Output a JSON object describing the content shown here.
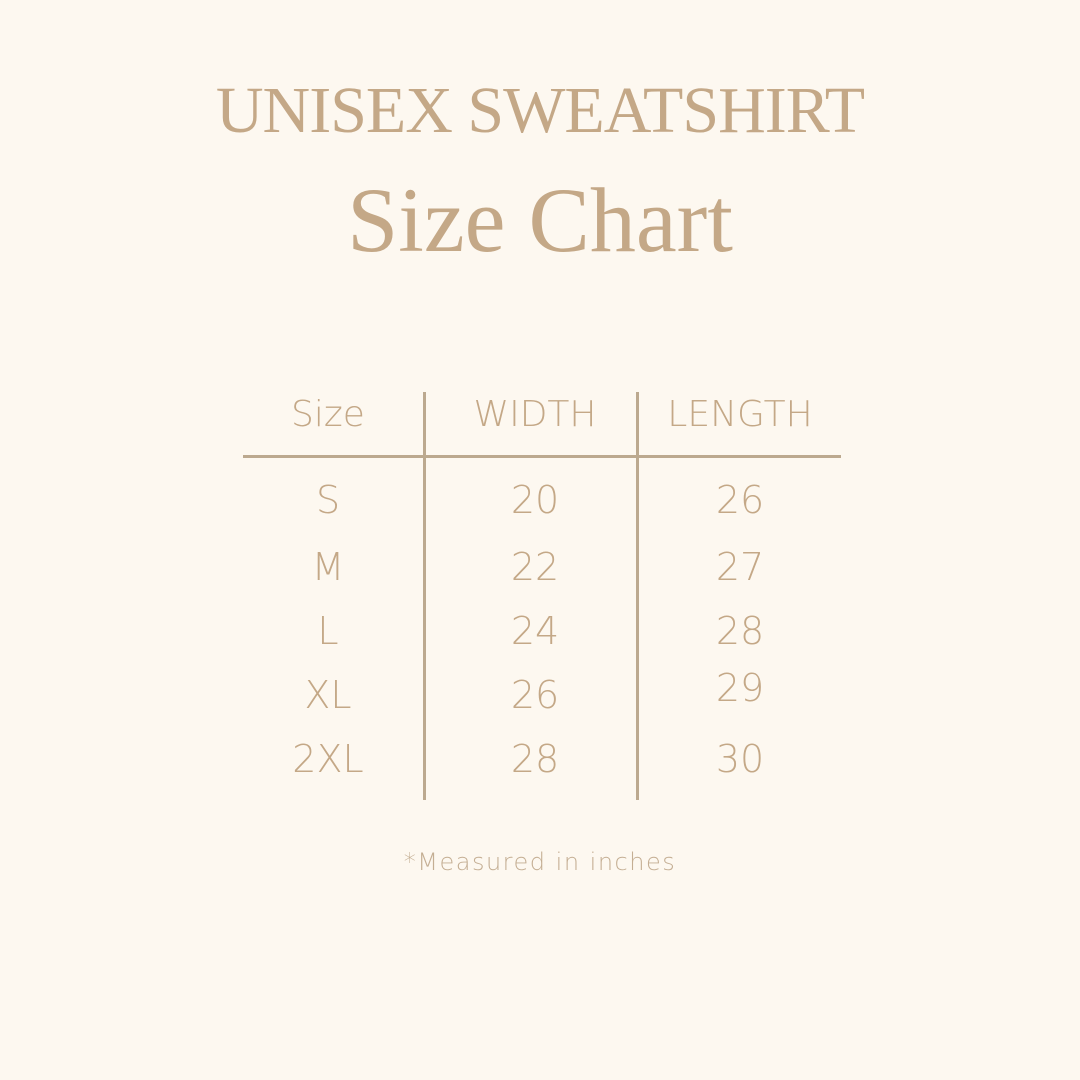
{
  "title": "UNISEX SWEATSHIRT",
  "subtitle": "Size Chart",
  "table": {
    "headers": [
      "Size",
      "WIDTH",
      "LENGTH"
    ],
    "rows": [
      [
        "S",
        "20",
        "26"
      ],
      [
        "M",
        "22",
        "27"
      ],
      [
        "L",
        "24",
        "28"
      ],
      [
        "XL",
        "26",
        "29"
      ],
      [
        "2XL",
        "28",
        "30"
      ]
    ]
  },
  "note": "*Measured in inches",
  "colors": {
    "background": "#fdf8f0",
    "text": "#c4a887",
    "rules": "#bca98f"
  }
}
